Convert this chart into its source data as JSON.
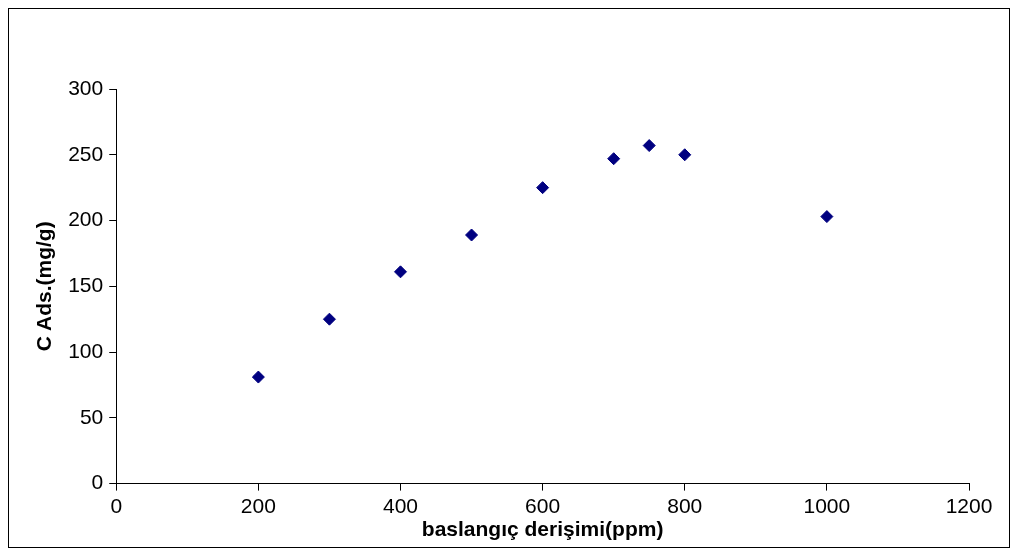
{
  "chart_data": {
    "type": "scatter",
    "xlabel": "baslangıç derişimi(ppm)",
    "ylabel": "C Ads.(mg/g)",
    "x": [
      200,
      300,
      400,
      500,
      600,
      700,
      750,
      800,
      1000
    ],
    "values": [
      81,
      125,
      161,
      189,
      225,
      247,
      257,
      250,
      203
    ],
    "color": "#000080",
    "marker": "diamond",
    "xlim": [
      0,
      1200
    ],
    "xticks": [
      0,
      200,
      400,
      600,
      800,
      1000,
      1200
    ],
    "ylim": [
      0,
      300
    ],
    "yticks": [
      0,
      50,
      100,
      150,
      200,
      250,
      300
    ],
    "grid": false,
    "legend": false
  }
}
